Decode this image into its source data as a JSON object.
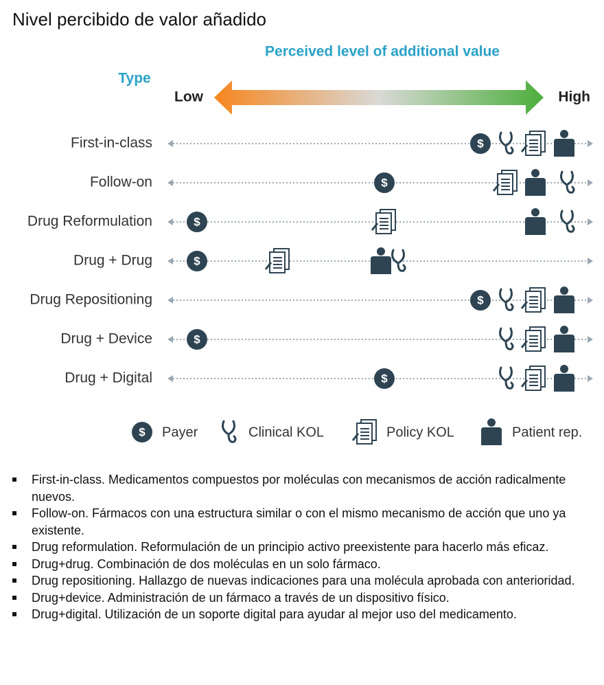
{
  "title": "Nivel percibido de valor añadido",
  "scale": {
    "title": "Perceived level of additional value",
    "type_label": "Type",
    "low": "Low",
    "high": "High"
  },
  "rows": [
    "First-in-class",
    "Follow-on",
    "Drug Reformulation",
    "Drug + Drug",
    "Drug Repositioning",
    "Drug + Device",
    "Drug + Digital"
  ],
  "legend": [
    "Payer",
    "Clinical KOL",
    "Policy KOL",
    "Patient rep."
  ],
  "notes": [
    "First-in-class. Medicamentos compuestos por moléculas con mecanismos de acción radicalmente nuevos.",
    "Follow-on. Fármacos con una estructura similar o con el mismo mecanismo de acción que uno ya existente.",
    "Drug reformulation. Reformulación de un principio activo preexistente para hacerlo más eficaz.",
    "Drug+drug. Combinación de dos moléculas en un solo fármaco.",
    "Drug repositioning. Hallazgo de nuevas indicaciones para una molécula aprobada con anterioridad.",
    "Drug+device. Administración de un fármaco a través de un dispositivo físico.",
    "Drug+digital. Utilización de un soporte digital para ayudar al mejor uso del medicamento."
  ]
}
